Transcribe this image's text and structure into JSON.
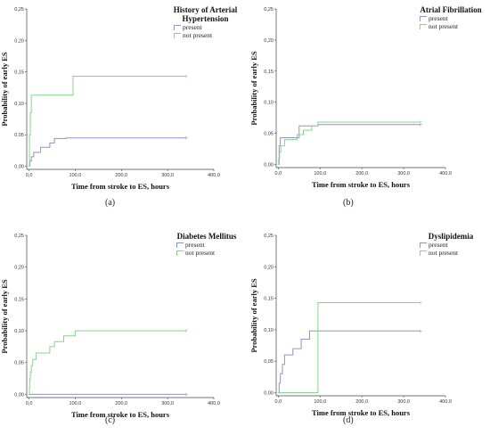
{
  "colors": {
    "present": "#8f93c8",
    "not_present": "#86d48a",
    "axis": "#444444"
  },
  "chart_data": [
    {
      "type": "line",
      "legend_title": "History of Arterial Hypertension",
      "caption": "(a)",
      "xlabel": "Time from stroke to ES, hours",
      "ylabel": "Probability of early ES",
      "xlim": [
        -5,
        400
      ],
      "ylim": [
        -0.005,
        0.25
      ],
      "x_ticks": [
        "0,0",
        "100,0",
        "200,0",
        "300,0",
        "400,0"
      ],
      "y_ticks": [
        "0,00",
        "0,05",
        "0,10",
        "0,15",
        "0,20",
        "0,25"
      ],
      "series": [
        {
          "name": "present",
          "x": [
            0,
            2,
            2,
            5,
            5,
            10,
            10,
            25,
            25,
            45,
            45,
            55,
            55,
            80,
            80,
            340
          ],
          "y": [
            0,
            0,
            0.008,
            0.008,
            0.015,
            0.015,
            0.022,
            0.022,
            0.03,
            0.03,
            0.037,
            0.037,
            0.044,
            0.044,
            0.045,
            0.045
          ]
        },
        {
          "name": "not present",
          "x": [
            0,
            1,
            1,
            3,
            3,
            5,
            5,
            95,
            95,
            340
          ],
          "y": [
            0,
            0,
            0.05,
            0.05,
            0.085,
            0.085,
            0.113,
            0.113,
            0.143,
            0.143
          ]
        }
      ]
    },
    {
      "type": "line",
      "legend_title": "Atrial Fibrillation",
      "caption": "(b)",
      "xlabel": "Time from stroke to ES, hours",
      "ylabel": "Probability of early ES",
      "xlim": [
        -5,
        400
      ],
      "ylim": [
        -0.005,
        0.25
      ],
      "x_ticks": [
        "0,0",
        "100,0",
        "200,0",
        "300,0",
        "400,0"
      ],
      "y_ticks": [
        "0,00",
        "0,05",
        "0,10",
        "0,15",
        "0,20",
        "0,25"
      ],
      "series": [
        {
          "name": "present",
          "x": [
            0,
            2,
            2,
            5,
            5,
            50,
            50,
            95,
            95,
            340
          ],
          "y": [
            0,
            0,
            0.03,
            0.03,
            0.043,
            0.043,
            0.062,
            0.062,
            0.064,
            0.064
          ]
        },
        {
          "name": "not present",
          "x": [
            0,
            1,
            1,
            3,
            3,
            6,
            6,
            15,
            15,
            45,
            45,
            60,
            60,
            80,
            80,
            95,
            95,
            340
          ],
          "y": [
            0,
            0,
            0.01,
            0.01,
            0.02,
            0.02,
            0.03,
            0.03,
            0.04,
            0.04,
            0.048,
            0.048,
            0.055,
            0.055,
            0.062,
            0.062,
            0.068,
            0.068
          ]
        }
      ]
    },
    {
      "type": "line",
      "legend_title": "Diabetes Mellitus",
      "caption": "(c)",
      "xlabel": "Time from stroke to ES, hours",
      "ylabel": "Probability of early ES",
      "xlim": [
        -5,
        400
      ],
      "ylim": [
        -0.005,
        0.25
      ],
      "x_ticks": [
        "0,0",
        "100,0",
        "200,0",
        "300,0",
        "400,0"
      ],
      "y_ticks": [
        "0,00",
        "0,05",
        "0,10",
        "0,15",
        "0,20",
        "0,25"
      ],
      "series": [
        {
          "name": "present",
          "x": [
            0,
            340
          ],
          "y": [
            0,
            0
          ]
        },
        {
          "name": "not present",
          "x": [
            0,
            1,
            1,
            2,
            2,
            3,
            3,
            5,
            5,
            8,
            8,
            15,
            15,
            45,
            45,
            55,
            55,
            75,
            75,
            100,
            100,
            340
          ],
          "y": [
            0,
            0,
            0.012,
            0.012,
            0.025,
            0.025,
            0.035,
            0.035,
            0.045,
            0.045,
            0.055,
            0.055,
            0.065,
            0.065,
            0.075,
            0.075,
            0.083,
            0.083,
            0.092,
            0.092,
            0.1,
            0.1
          ]
        }
      ]
    },
    {
      "type": "line",
      "legend_title": "Dyslipidemia",
      "caption": "(d)",
      "xlabel": "Time from stroke to ES, hours",
      "ylabel": "Probability of early ES",
      "xlim": [
        -5,
        400
      ],
      "ylim": [
        -0.005,
        0.25
      ],
      "x_ticks": [
        "0,0",
        "100,0",
        "200,0",
        "300,0",
        "400,0"
      ],
      "y_ticks": [
        "0,00",
        "0,05",
        "0,10",
        "0,15",
        "0,20",
        "0,25"
      ],
      "series": [
        {
          "name": "present",
          "x": [
            0,
            2,
            2,
            5,
            5,
            10,
            10,
            15,
            15,
            35,
            35,
            55,
            55,
            75,
            75,
            340
          ],
          "y": [
            0,
            0,
            0.015,
            0.015,
            0.03,
            0.03,
            0.045,
            0.045,
            0.06,
            0.06,
            0.07,
            0.07,
            0.085,
            0.085,
            0.098,
            0.098
          ]
        },
        {
          "name": "not present",
          "x": [
            0,
            95,
            95,
            340
          ],
          "y": [
            0,
            0,
            0.143,
            0.143
          ]
        }
      ]
    }
  ]
}
